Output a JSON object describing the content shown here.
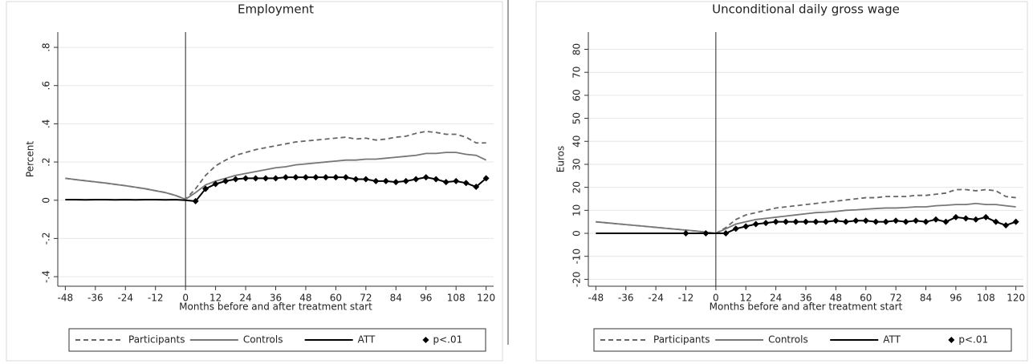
{
  "chart_data": [
    {
      "type": "line",
      "title": "Employment",
      "x_label": "Months before and after treatment start",
      "y_label": "Percent",
      "x": [
        -48,
        -44,
        -40,
        -36,
        -32,
        -28,
        -24,
        -20,
        -16,
        -12,
        -8,
        -4,
        0,
        4,
        8,
        12,
        16,
        20,
        24,
        28,
        32,
        36,
        40,
        44,
        48,
        52,
        56,
        60,
        64,
        68,
        72,
        76,
        80,
        84,
        88,
        92,
        96,
        100,
        104,
        108,
        112,
        116,
        120
      ],
      "xlim": [
        -51,
        123
      ],
      "xticks": [
        -48,
        -36,
        -24,
        -12,
        0,
        12,
        24,
        36,
        48,
        60,
        72,
        84,
        96,
        108,
        120
      ],
      "xline": 0,
      "ylim": [
        -0.45,
        0.88
      ],
      "yticks": [
        {
          "value": -0.4,
          "label": "-.4"
        },
        {
          "value": -0.2,
          "label": "-.2"
        },
        0,
        {
          "value": 0.2,
          "label": ".2"
        },
        {
          "value": 0.4,
          "label": ".4"
        },
        {
          "value": 0.6,
          "label": ".6"
        },
        {
          "value": 0.8,
          "label": ".8"
        }
      ],
      "grid": true,
      "legend": "bottom",
      "series": [
        {
          "name": "Participants",
          "color": "#666666",
          "style": "dashed",
          "values": [
            0.115,
            0.108,
            0.102,
            0.096,
            0.09,
            0.083,
            0.076,
            0.068,
            0.06,
            0.05,
            0.04,
            0.025,
            0.005,
            0.06,
            0.13,
            0.18,
            0.21,
            0.235,
            0.25,
            0.265,
            0.275,
            0.285,
            0.295,
            0.305,
            0.31,
            0.315,
            0.32,
            0.325,
            0.33,
            0.32,
            0.325,
            0.315,
            0.32,
            0.33,
            0.335,
            0.35,
            0.36,
            0.355,
            0.345,
            0.345,
            0.33,
            0.3,
            0.3
          ]
        },
        {
          "name": "Controls",
          "color": "#777777",
          "style": "solid",
          "values": [
            0.115,
            0.108,
            0.102,
            0.096,
            0.09,
            0.083,
            0.076,
            0.068,
            0.06,
            0.05,
            0.04,
            0.025,
            0.005,
            0.04,
            0.08,
            0.1,
            0.115,
            0.13,
            0.14,
            0.15,
            0.16,
            0.17,
            0.175,
            0.185,
            0.19,
            0.195,
            0.2,
            0.205,
            0.21,
            0.21,
            0.215,
            0.215,
            0.22,
            0.225,
            0.23,
            0.235,
            0.245,
            0.245,
            0.25,
            0.25,
            0.24,
            0.235,
            0.21
          ]
        },
        {
          "name": "ATT",
          "color": "#000000",
          "style": "solid",
          "values": [
            0.003,
            0.003,
            0.002,
            0.003,
            0.003,
            0.002,
            0.003,
            0.002,
            0.003,
            0.003,
            0.002,
            0.003,
            0,
            -0.005,
            0.06,
            0.085,
            0.1,
            0.11,
            0.115,
            0.115,
            0.115,
            0.115,
            0.12,
            0.12,
            0.12,
            0.12,
            0.12,
            0.12,
            0.12,
            0.11,
            0.11,
            0.1,
            0.1,
            0.095,
            0.1,
            0.11,
            0.12,
            0.11,
            0.095,
            0.1,
            0.09,
            0.07,
            0.115
          ]
        },
        {
          "name": "p<.01",
          "color": "#000000",
          "style": "marker",
          "values": [
            null,
            null,
            null,
            null,
            null,
            null,
            null,
            null,
            null,
            null,
            null,
            null,
            null,
            -0.005,
            0.06,
            0.085,
            0.1,
            0.11,
            0.115,
            0.115,
            0.115,
            0.115,
            0.12,
            0.12,
            0.12,
            0.12,
            0.12,
            0.12,
            0.12,
            0.11,
            0.11,
            0.1,
            0.1,
            0.095,
            0.1,
            0.11,
            0.12,
            0.11,
            0.095,
            0.1,
            0.09,
            0.07,
            0.115
          ]
        }
      ]
    },
    {
      "type": "line",
      "title": "Unconditional daily gross wage",
      "x_label": "Months before and after treatment start",
      "y_label": "Euros",
      "x": [
        -48,
        -44,
        -40,
        -36,
        -32,
        -28,
        -24,
        -20,
        -16,
        -12,
        -8,
        -4,
        0,
        4,
        8,
        12,
        16,
        20,
        24,
        28,
        32,
        36,
        40,
        44,
        48,
        52,
        56,
        60,
        64,
        68,
        72,
        76,
        80,
        84,
        88,
        92,
        96,
        100,
        104,
        108,
        112,
        116,
        120
      ],
      "xlim": [
        -51,
        123
      ],
      "xticks": [
        -48,
        -36,
        -24,
        -12,
        0,
        12,
        24,
        36,
        48,
        60,
        72,
        84,
        96,
        108,
        120
      ],
      "xline": 0,
      "ylim": [
        -23,
        87.5
      ],
      "yticks": [
        -20,
        -10,
        0,
        10,
        20,
        30,
        40,
        50,
        60,
        70,
        80
      ],
      "grid": true,
      "legend": "bottom",
      "series": [
        {
          "name": "Participants",
          "color": "#666666",
          "style": "dashed",
          "values": [
            5,
            4.6,
            4.2,
            3.8,
            3.4,
            3,
            2.6,
            2.2,
            1.8,
            1.4,
            1,
            0.5,
            0,
            2.5,
            6,
            8,
            9,
            10,
            11,
            11.5,
            12,
            12.5,
            13,
            13.5,
            14,
            14.5,
            15,
            15.5,
            15.5,
            16,
            16,
            16,
            16.5,
            16.5,
            17,
            17.5,
            19,
            19,
            18.5,
            19,
            18.5,
            16,
            15.5
          ]
        },
        {
          "name": "Controls",
          "color": "#777777",
          "style": "solid",
          "values": [
            5,
            4.6,
            4.2,
            3.8,
            3.4,
            3,
            2.6,
            2.2,
            1.8,
            1.4,
            1,
            0.5,
            0,
            2,
            4,
            5,
            6,
            6.5,
            7,
            7.5,
            8,
            8.5,
            9,
            9.2,
            9.5,
            10,
            10.2,
            10.5,
            10.8,
            11,
            11,
            11.2,
            11.5,
            11.5,
            12,
            12.2,
            12.5,
            12.5,
            13,
            12.5,
            12.5,
            12,
            11.5
          ]
        },
        {
          "name": "ATT",
          "color": "#000000",
          "style": "solid",
          "values": [
            0,
            0,
            0,
            0,
            0,
            0,
            0,
            0,
            0,
            0,
            0,
            0,
            0,
            0,
            2,
            3,
            4,
            4.5,
            5,
            5,
            5,
            5,
            5,
            5,
            5.5,
            5,
            5.5,
            5.5,
            5,
            5,
            5.5,
            5,
            5.5,
            5,
            6,
            5,
            7,
            6.5,
            6,
            7,
            5,
            3.5,
            5
          ]
        },
        {
          "name": "p<.01",
          "color": "#000000",
          "style": "marker",
          "values": [
            null,
            null,
            null,
            null,
            null,
            null,
            null,
            null,
            null,
            0,
            null,
            0,
            null,
            0,
            2,
            3,
            4,
            4.5,
            5,
            5,
            5,
            5,
            5,
            5,
            5.5,
            5,
            5.5,
            5.5,
            5,
            5,
            5.5,
            5,
            5.5,
            5,
            6,
            5,
            7,
            6.5,
            6,
            7,
            5,
            3.5,
            5
          ]
        }
      ]
    }
  ]
}
